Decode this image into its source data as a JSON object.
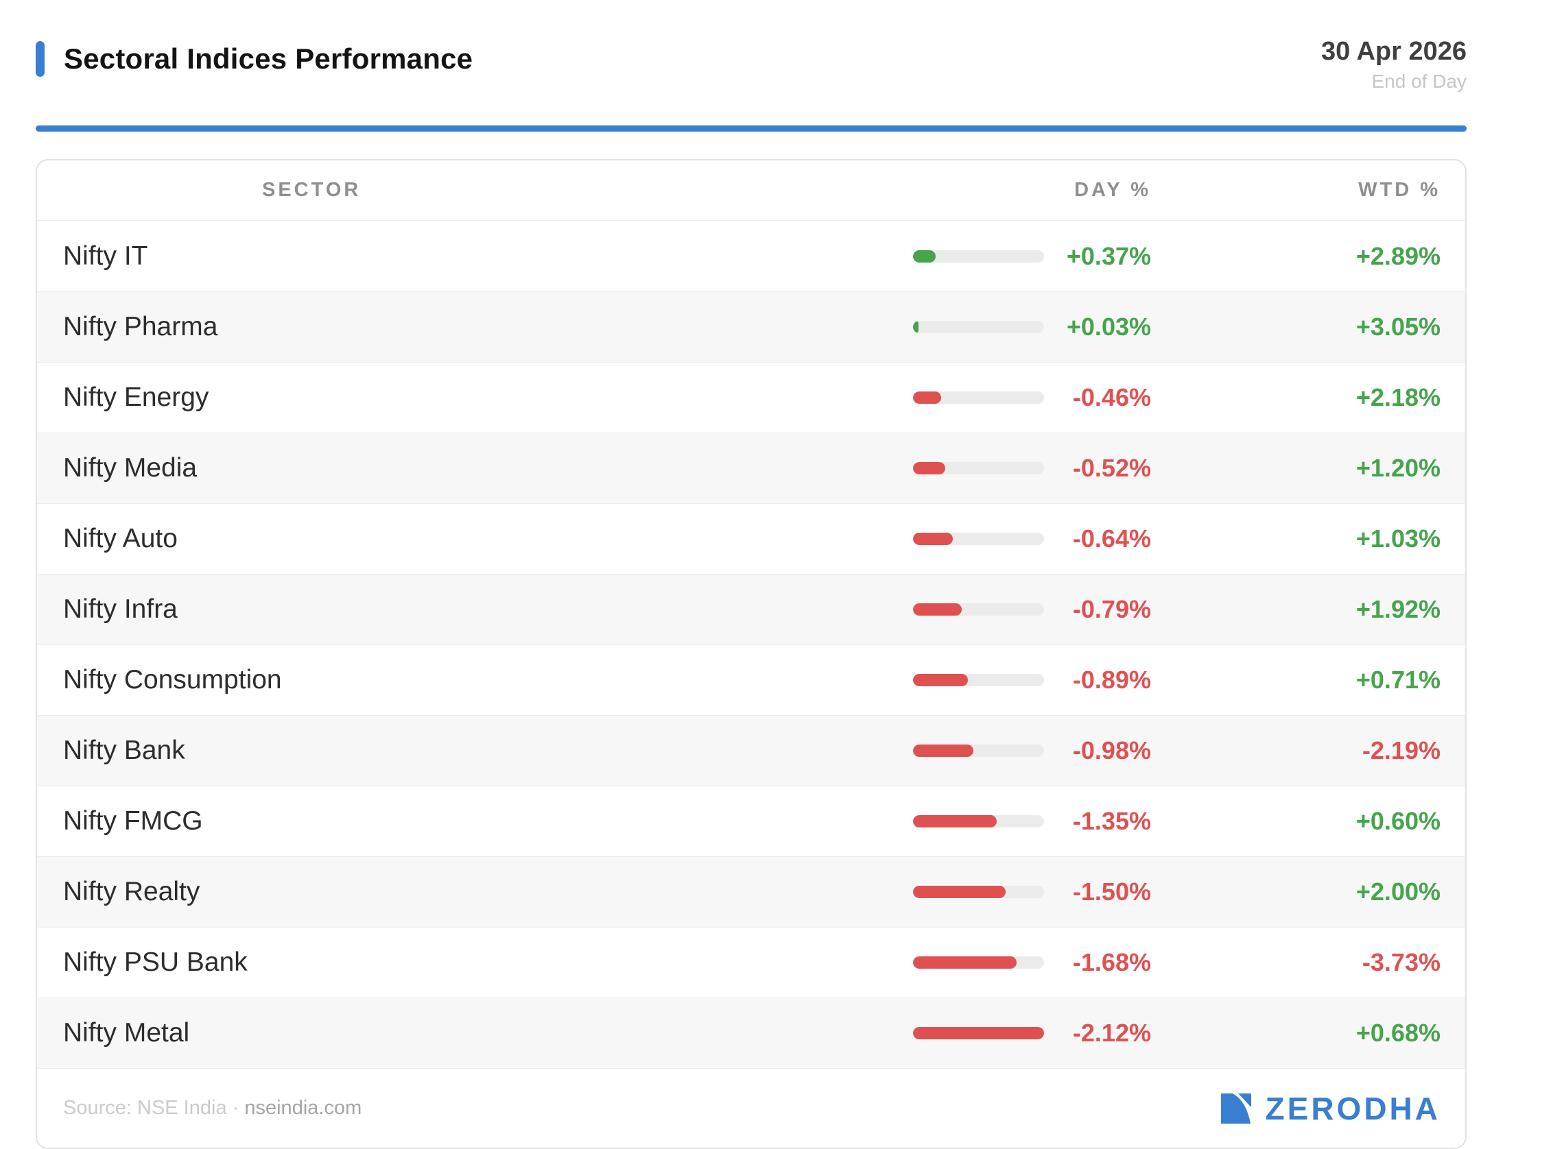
{
  "header": {
    "title": "Sectoral Indices Performance",
    "date": "30 Apr 2026",
    "period": "End of Day"
  },
  "table": {
    "columns": [
      "SECTOR",
      "DAY %",
      "WTD %"
    ],
    "rows": [
      {
        "sector": "Nifty IT",
        "day": "+0.37%",
        "day_value": 0.37,
        "wtd": "+2.89%",
        "wtd_value": 2.89
      },
      {
        "sector": "Nifty Pharma",
        "day": "+0.03%",
        "day_value": 0.03,
        "wtd": "+3.05%",
        "wtd_value": 3.05
      },
      {
        "sector": "Nifty Energy",
        "day": "-0.46%",
        "day_value": -0.46,
        "wtd": "+2.18%",
        "wtd_value": 2.18
      },
      {
        "sector": "Nifty Media",
        "day": "-0.52%",
        "day_value": -0.52,
        "wtd": "+1.20%",
        "wtd_value": 1.2
      },
      {
        "sector": "Nifty Auto",
        "day": "-0.64%",
        "day_value": -0.64,
        "wtd": "+1.03%",
        "wtd_value": 1.03
      },
      {
        "sector": "Nifty Infra",
        "day": "-0.79%",
        "day_value": -0.79,
        "wtd": "+1.92%",
        "wtd_value": 1.92
      },
      {
        "sector": "Nifty Consumption",
        "day": "-0.89%",
        "day_value": -0.89,
        "wtd": "+0.71%",
        "wtd_value": 0.71
      },
      {
        "sector": "Nifty Bank",
        "day": "-0.98%",
        "day_value": -0.98,
        "wtd": "-2.19%",
        "wtd_value": -2.19
      },
      {
        "sector": "Nifty FMCG",
        "day": "-1.35%",
        "day_value": -1.35,
        "wtd": "+0.60%",
        "wtd_value": 0.6
      },
      {
        "sector": "Nifty Realty",
        "day": "-1.50%",
        "day_value": -1.5,
        "wtd": "+2.00%",
        "wtd_value": 2.0
      },
      {
        "sector": "Nifty PSU Bank",
        "day": "-1.68%",
        "day_value": -1.68,
        "wtd": "-3.73%",
        "wtd_value": -3.73
      },
      {
        "sector": "Nifty Metal",
        "day": "-2.12%",
        "day_value": -2.12,
        "wtd": "+0.68%",
        "wtd_value": 0.68
      }
    ]
  },
  "footer": {
    "source_prefix": "Source: NSE India ·",
    "source_link": "nseindia.com",
    "brand": "ZERODHA"
  },
  "colors": {
    "accent_blue": "#387ED1",
    "positive_green": "#45A44C",
    "negative_red": "#DF5151",
    "bar_track": "#EBEBEB",
    "row_stripe": "#F7F7F7"
  },
  "chart_data": {
    "type": "bar",
    "title": "Sectoral Indices Performance",
    "categories": [
      "Nifty IT",
      "Nifty Pharma",
      "Nifty Energy",
      "Nifty Media",
      "Nifty Auto",
      "Nifty Infra",
      "Nifty Consumption",
      "Nifty Bank",
      "Nifty FMCG",
      "Nifty Realty",
      "Nifty PSU Bank",
      "Nifty Metal"
    ],
    "series": [
      {
        "name": "DAY %",
        "values": [
          0.37,
          0.03,
          -0.46,
          -0.52,
          -0.64,
          -0.79,
          -0.89,
          -0.98,
          -1.35,
          -1.5,
          -1.68,
          -2.12
        ]
      },
      {
        "name": "WTD %",
        "values": [
          2.89,
          3.05,
          2.18,
          1.2,
          1.03,
          1.92,
          0.71,
          -2.19,
          0.6,
          2.0,
          -3.73,
          0.68
        ]
      }
    ],
    "xlabel": "",
    "ylabel": "",
    "bar_scale": "fill proportional to |DAY %| with max 2.12 = 100%",
    "legend_position": "none",
    "grid": false
  }
}
